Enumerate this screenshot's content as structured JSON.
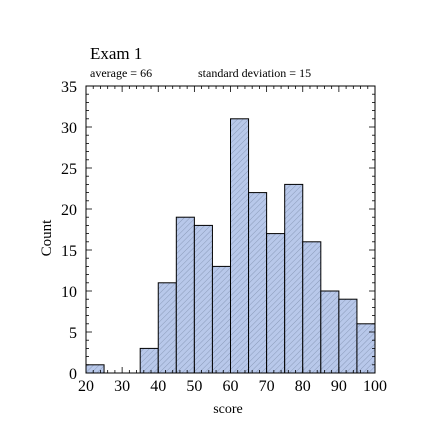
{
  "chart_data": {
    "type": "bar",
    "title": "Exam 1",
    "subtitle_average": "average = 66",
    "subtitle_sd": "standard deviation = 15",
    "xlabel": "score",
    "ylabel": "Count",
    "xlim": [
      20,
      100
    ],
    "ylim": [
      0,
      35
    ],
    "bin_width": 5,
    "x_ticks": [
      20,
      30,
      40,
      50,
      60,
      70,
      80,
      90,
      100
    ],
    "y_ticks": [
      0,
      5,
      10,
      15,
      20,
      25,
      30,
      35
    ],
    "bins": [
      {
        "start": 20,
        "count": 1
      },
      {
        "start": 25,
        "count": 0
      },
      {
        "start": 30,
        "count": 0
      },
      {
        "start": 35,
        "count": 3
      },
      {
        "start": 40,
        "count": 11
      },
      {
        "start": 45,
        "count": 19
      },
      {
        "start": 50,
        "count": 18
      },
      {
        "start": 55,
        "count": 13
      },
      {
        "start": 60,
        "count": 31
      },
      {
        "start": 65,
        "count": 22
      },
      {
        "start": 70,
        "count": 17
      },
      {
        "start": 75,
        "count": 23
      },
      {
        "start": 80,
        "count": 16
      },
      {
        "start": 85,
        "count": 10
      },
      {
        "start": 90,
        "count": 9
      },
      {
        "start": 95,
        "count": 6
      }
    ],
    "bar_fill": "#b8c8ea",
    "bar_stroke": "#000000",
    "hatch_color": "#7f8fae",
    "grid": false
  }
}
